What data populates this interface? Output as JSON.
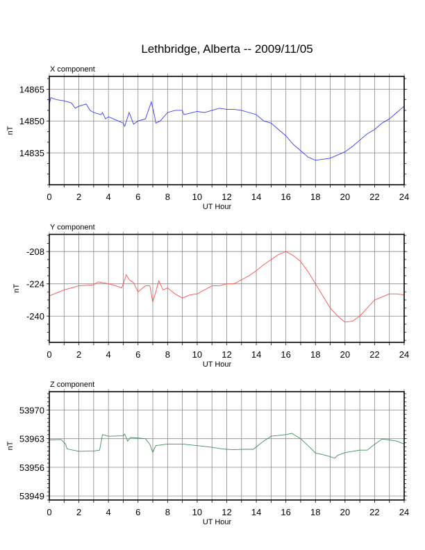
{
  "title": "Lethbridge, Alberta -- 2009/11/05",
  "chart_data": [
    {
      "type": "line",
      "title": "X component",
      "xlabel": "UT Hour",
      "ylabel": "nT",
      "xlim": [
        0,
        24
      ],
      "ylim": [
        14820,
        14871
      ],
      "xticks": [
        0,
        2,
        4,
        6,
        8,
        10,
        12,
        14,
        16,
        18,
        20,
        22,
        24
      ],
      "yticks": [
        14835,
        14850,
        14865
      ],
      "yminor": 5,
      "color": "#3b3bff",
      "grid": true,
      "x": [
        0,
        0.1,
        0.5,
        1,
        1.5,
        1.75,
        2,
        2.5,
        2.75,
        3,
        3.5,
        3.6,
        3.8,
        4,
        4.5,
        5,
        5.1,
        5.4,
        5.7,
        6,
        6.5,
        6.9,
        7.1,
        7.2,
        7.5,
        8,
        8.5,
        9,
        9.1,
        10,
        10.5,
        11,
        11.5,
        12,
        12.5,
        13,
        13.5,
        14,
        14.5,
        15,
        15.5,
        16,
        16.5,
        17,
        17.5,
        18,
        18.5,
        19,
        19.5,
        20,
        20.5,
        21,
        21.5,
        22,
        22.5,
        23,
        23.5,
        24
      ],
      "y": [
        14858,
        14861,
        14860,
        14859.5,
        14858.5,
        14856,
        14857,
        14858,
        14855,
        14854,
        14853,
        14854,
        14851,
        14852,
        14850.5,
        14849,
        14847.5,
        14854,
        14848.5,
        14850,
        14851,
        14859,
        14853,
        14849,
        14850,
        14854,
        14855,
        14855,
        14853,
        14854.5,
        14854,
        14855,
        14856,
        14855.5,
        14855.5,
        14855,
        14854,
        14853,
        14850,
        14849,
        14846,
        14843,
        14839,
        14836,
        14833,
        14831.5,
        14832,
        14832.5,
        14834,
        14835.5,
        14838,
        14841,
        14844,
        14846,
        14849,
        14851,
        14854,
        14857
      ]
    },
    {
      "type": "line",
      "title": "Y component",
      "xlabel": "UT Hour",
      "ylabel": "nT",
      "xlim": [
        0,
        24
      ],
      "ylim": [
        -253,
        -199.5
      ],
      "xticks": [
        0,
        2,
        4,
        6,
        8,
        10,
        12,
        14,
        16,
        18,
        20,
        22,
        24
      ],
      "yticks": [
        -240,
        -224,
        -208
      ],
      "yminor": 4,
      "color": "#ff4d4d",
      "grid": true,
      "x": [
        0,
        0.5,
        1,
        2,
        3,
        3.3,
        4,
        4.5,
        4.9,
        5.1,
        5.2,
        5.4,
        5.7,
        6,
        6.5,
        6.8,
        7,
        7.2,
        7.4,
        7.7,
        8,
        8.5,
        9,
        9.5,
        10,
        10.5,
        11,
        11.5,
        12,
        12.5,
        13,
        13.5,
        14,
        14.5,
        15,
        15.5,
        16,
        16.5,
        17,
        17.5,
        18,
        18.5,
        19,
        19.5,
        20,
        20.5,
        21,
        21.5,
        22,
        22.5,
        23,
        23.5,
        24
      ],
      "y": [
        -230,
        -228.5,
        -227,
        -225,
        -224.5,
        -223,
        -224,
        -225,
        -226,
        -222,
        -219.5,
        -222,
        -223.5,
        -228,
        -225,
        -225,
        -233,
        -228,
        -222.5,
        -227,
        -226,
        -229,
        -231,
        -229.5,
        -229,
        -227,
        -225,
        -225,
        -224,
        -224,
        -222,
        -220,
        -217.5,
        -214.5,
        -212,
        -209.5,
        -208,
        -210,
        -213,
        -218,
        -224,
        -230,
        -236,
        -240,
        -243,
        -242.5,
        -240,
        -236,
        -232,
        -230.5,
        -229,
        -229,
        -229.5
      ]
    },
    {
      "type": "line",
      "title": "Z component",
      "xlabel": "UT Hour",
      "ylabel": "nT",
      "xlim": [
        0,
        24
      ],
      "ylim": [
        53948,
        53974.5
      ],
      "xticks": [
        0,
        2,
        4,
        6,
        8,
        10,
        12,
        14,
        16,
        18,
        20,
        22,
        24
      ],
      "yticks": [
        53949,
        53956,
        53963,
        53970
      ],
      "yminor": 1,
      "color": "#3f8f5f",
      "grid": true,
      "x": [
        0,
        0.8,
        1.1,
        1.2,
        2,
        3,
        3.4,
        3.6,
        4,
        5,
        5.1,
        5.3,
        5.5,
        6.5,
        6.8,
        7,
        7.2,
        8,
        9,
        10,
        11,
        11.7,
        12,
        12.5,
        13,
        13.8,
        14,
        14.5,
        15,
        16,
        16.4,
        17,
        17.5,
        18,
        18.5,
        19,
        19.3,
        19.5,
        20,
        21,
        21.5,
        22,
        22.5,
        23,
        23.5,
        24
      ],
      "y": [
        53962.7,
        53962.8,
        53961.7,
        53960.5,
        53959.9,
        53960,
        53960.2,
        53964,
        53963.6,
        53963.7,
        53964.1,
        53962.4,
        53963.3,
        53963,
        53961.6,
        53959.6,
        53961.3,
        53961.7,
        53961.7,
        53961.3,
        53960.9,
        53960.5,
        53960.4,
        53960.3,
        53960.4,
        53960.4,
        53961,
        53962.4,
        53963.6,
        53964,
        53964.3,
        53963,
        53961.3,
        53959.5,
        53959.1,
        53958.6,
        53958.2,
        53958.9,
        53959.6,
        53960.2,
        53960.2,
        53961.6,
        53962.9,
        53962.7,
        53962.4,
        53961.7
      ]
    }
  ]
}
